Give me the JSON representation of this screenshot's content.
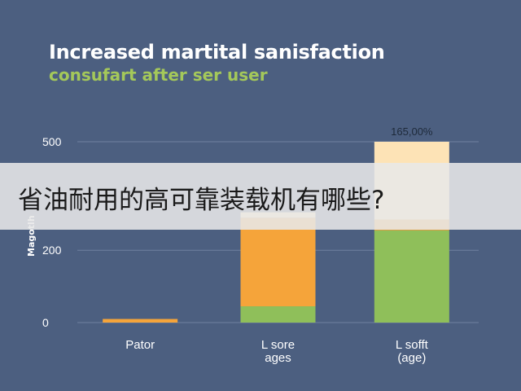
{
  "chart_data": {
    "type": "bar",
    "title": "Increased martital sanisfaction",
    "subtitle": "consufart after ser user",
    "ylabel": "Magotlh",
    "yticks": [
      "500",
      "200",
      "0"
    ],
    "ylim": [
      0,
      500
    ],
    "categories": [
      {
        "lines": [
          "Pator"
        ]
      },
      {
        "lines": [
          "L sore",
          "ages"
        ]
      },
      {
        "lines": [
          "L sofft",
          "(age)"
        ]
      }
    ],
    "series": [
      {
        "values": [
          0,
          45,
          255
        ],
        "color": "#8fbf5a"
      },
      {
        "values": [
          10,
          245,
          30
        ],
        "color": "#f5a43a"
      },
      {
        "values": [
          0,
          15,
          215
        ],
        "color": "#fde3b6"
      }
    ],
    "data_labels": [
      "",
      "",
      "165,00%"
    ],
    "grid": true,
    "legend": "none"
  },
  "overlay": {
    "text": "省油耐用的高可靠装载机有哪些?"
  }
}
